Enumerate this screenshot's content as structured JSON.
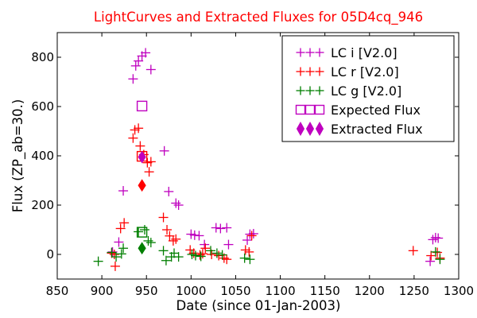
{
  "chart_data": {
    "type": "scatter",
    "title": "LightCurves and Extracted Fluxes for 05D4cq_946",
    "xlabel": "Date (since 01-Jan-2003)",
    "ylabel": "Flux (ZP_ab=30.)",
    "xlim": [
      850,
      1300
    ],
    "ylim": [
      -100,
      900
    ],
    "xticks": [
      850,
      900,
      950,
      1000,
      1050,
      1100,
      1150,
      1200,
      1250,
      1300
    ],
    "yticks": [
      0,
      200,
      400,
      600,
      800
    ],
    "grid": false,
    "legend_position": "top-right",
    "colors": {
      "title": "#ff0000",
      "lc_i": "#bf00bf",
      "lc_r": "#ff0000",
      "lc_g": "#007f00"
    },
    "series": [
      {
        "name": "LC i [V2.0]",
        "marker": "plus",
        "color": "#bf00bf",
        "points": [
          [
            912,
            10
          ],
          [
            919,
            50
          ],
          [
            924,
            258
          ],
          [
            935,
            712
          ],
          [
            938,
            765
          ],
          [
            941,
            785
          ],
          [
            945,
            805
          ],
          [
            949,
            818
          ],
          [
            955,
            750
          ],
          [
            970,
            420
          ],
          [
            975,
            255
          ],
          [
            983,
            208
          ],
          [
            986,
            200
          ],
          [
            1000,
            82
          ],
          [
            1004,
            78
          ],
          [
            1009,
            76
          ],
          [
            1015,
            40
          ],
          [
            1028,
            108
          ],
          [
            1033,
            105
          ],
          [
            1040,
            108
          ],
          [
            1042,
            40
          ],
          [
            1063,
            58
          ],
          [
            1066,
            82
          ],
          [
            1070,
            84
          ],
          [
            1268,
            -28
          ],
          [
            1271,
            60
          ],
          [
            1274,
            68
          ],
          [
            1277,
            66
          ]
        ]
      },
      {
        "name": "LC r [V2.0]",
        "marker": "plus",
        "color": "#ff0000",
        "points": [
          [
            911,
            5
          ],
          [
            914,
            0
          ],
          [
            915,
            -48
          ],
          [
            921,
            105
          ],
          [
            925,
            128
          ],
          [
            935,
            472
          ],
          [
            937,
            505
          ],
          [
            941,
            512
          ],
          [
            943,
            440
          ],
          [
            947,
            405
          ],
          [
            951,
            372
          ],
          [
            953,
            335
          ],
          [
            955,
            376
          ],
          [
            969,
            150
          ],
          [
            973,
            100
          ],
          [
            976,
            75
          ],
          [
            980,
            55
          ],
          [
            983,
            62
          ],
          [
            999,
            18
          ],
          [
            1003,
            5
          ],
          [
            1010,
            -2
          ],
          [
            1013,
            3
          ],
          [
            1016,
            25
          ],
          [
            1023,
            0
          ],
          [
            1031,
            -5
          ],
          [
            1037,
            -15
          ],
          [
            1040,
            -20
          ],
          [
            1061,
            18
          ],
          [
            1065,
            10
          ],
          [
            1068,
            76
          ],
          [
            1249,
            15
          ],
          [
            1269,
            -5
          ],
          [
            1276,
            8
          ],
          [
            1279,
            -15
          ]
        ]
      },
      {
        "name": "LC g [V2.0]",
        "marker": "plus",
        "color": "#007f00",
        "points": [
          [
            896,
            -28
          ],
          [
            911,
            8
          ],
          [
            916,
            -10
          ],
          [
            922,
            2
          ],
          [
            924,
            25
          ],
          [
            941,
            92
          ],
          [
            948,
            100
          ],
          [
            952,
            55
          ],
          [
            955,
            48
          ],
          [
            969,
            15
          ],
          [
            972,
            -25
          ],
          [
            978,
            -10
          ],
          [
            981,
            5
          ],
          [
            986,
            -10
          ],
          [
            1001,
            0
          ],
          [
            1005,
            -5
          ],
          [
            1011,
            -8
          ],
          [
            1022,
            15
          ],
          [
            1029,
            5
          ],
          [
            1035,
            -2
          ],
          [
            1060,
            -15
          ],
          [
            1066,
            -20
          ],
          [
            1274,
            10
          ],
          [
            1279,
            -20
          ]
        ]
      },
      {
        "name": "Expected Flux",
        "marker": "square",
        "color": "#bf00bf",
        "points": [
          [
            945,
            602
          ],
          [
            945,
            398
          ],
          [
            945,
            90
          ]
        ]
      },
      {
        "name": "Extracted Flux",
        "marker": "diamond",
        "color": "#bf00bf",
        "points": [
          [
            945,
            395
          ],
          [
            945,
            280
          ],
          [
            945,
            25
          ]
        ],
        "point_colors": [
          "#bf00bf",
          "#ff0000",
          "#007f00"
        ]
      }
    ],
    "square_colors": [
      "#bf00bf",
      "#ff0000",
      "#007f00"
    ]
  }
}
